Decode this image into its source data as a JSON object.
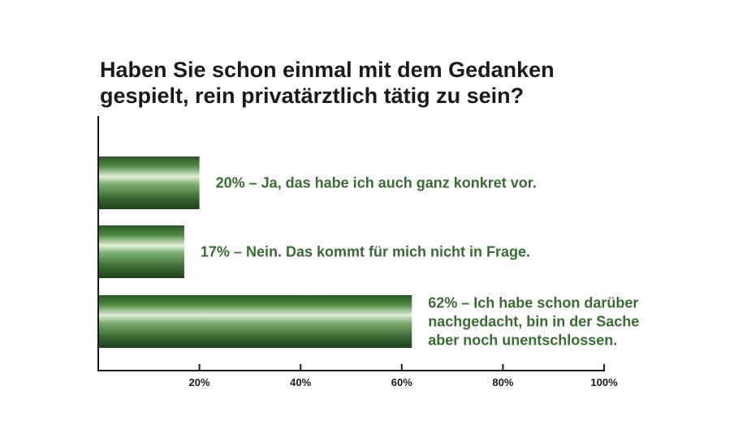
{
  "chart_data": {
    "type": "bar",
    "orientation": "horizontal",
    "title_lines": [
      "Haben Sie schon einmal mit dem Gedanken",
      "gespielt, rein privatärztlich tätig zu sein?"
    ],
    "categories": [
      [
        "20% – Ja, das habe ich auch ganz konkret vor."
      ],
      [
        "17% – Nein. Das kommt für mich nicht in Frage."
      ],
      [
        "62% – Ich habe schon darüber",
        "nachgedacht, bin in der Sache",
        "aber noch unentschlossen."
      ]
    ],
    "values": [
      20,
      17,
      62
    ],
    "xlim": [
      0,
      100
    ],
    "x_ticks": [
      20,
      40,
      60,
      80,
      100
    ],
    "x_tick_labels": [
      "20%",
      "40%",
      "60%",
      "80%",
      "100%"
    ],
    "grid": false,
    "legend": "none",
    "bar_color": "#3b6b34",
    "label_color": "#3b6b34"
  }
}
